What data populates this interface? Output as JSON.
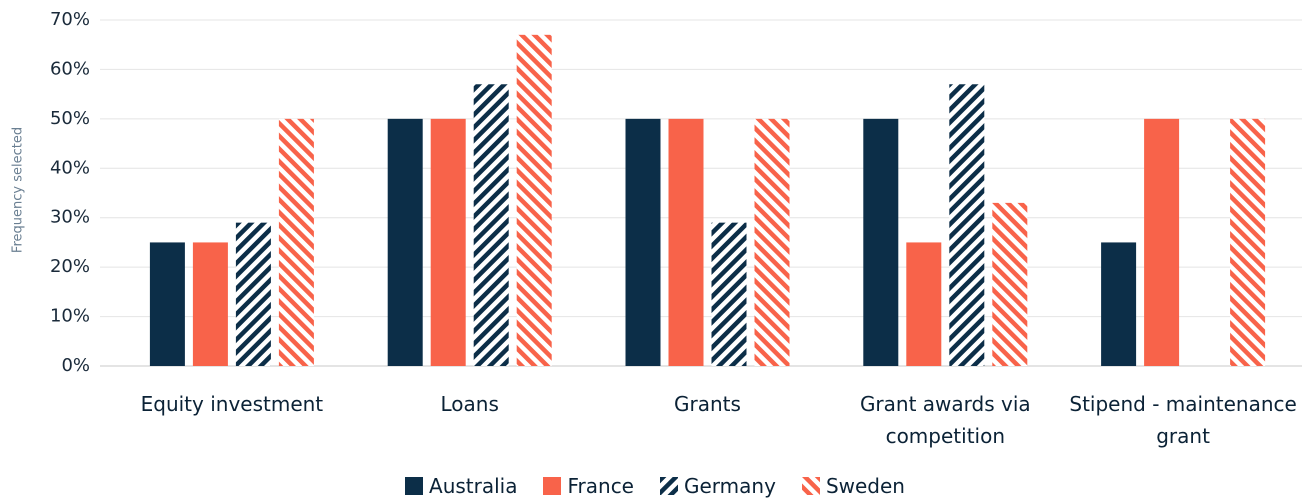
{
  "chart_data": {
    "type": "bar",
    "y_label": "Frequency selected",
    "categories": [
      "Equity investment",
      "Loans",
      "Grants",
      "Grant awards via competition",
      "Stipend - maintenance grant"
    ],
    "series": [
      {
        "name": "Australia",
        "color": "#0c2e48",
        "pattern": "solid",
        "values": [
          25,
          50,
          50,
          50,
          25
        ]
      },
      {
        "name": "France",
        "color": "#f8634a",
        "pattern": "solid",
        "values": [
          25,
          50,
          50,
          25,
          50
        ]
      },
      {
        "name": "Germany",
        "color": "#0c2e48",
        "pattern": "forward-hatch",
        "values": [
          29,
          57,
          29,
          57,
          0
        ]
      },
      {
        "name": "Sweden",
        "color": "#f8634a",
        "pattern": "back-hatch",
        "values": [
          50,
          67,
          50,
          33,
          50
        ]
      }
    ],
    "ylim": [
      0,
      70
    ],
    "yticks": [
      {
        "value": 0,
        "label": "0%"
      },
      {
        "value": 10,
        "label": "10%"
      },
      {
        "value": 20,
        "label": "20%"
      },
      {
        "value": 30,
        "label": "30%"
      },
      {
        "value": 40,
        "label": "40%"
      },
      {
        "value": 50,
        "label": "50%"
      },
      {
        "value": 60,
        "label": "60%"
      },
      {
        "value": 70,
        "label": "70%"
      }
    ],
    "grid": true,
    "legend": "bottom"
  }
}
